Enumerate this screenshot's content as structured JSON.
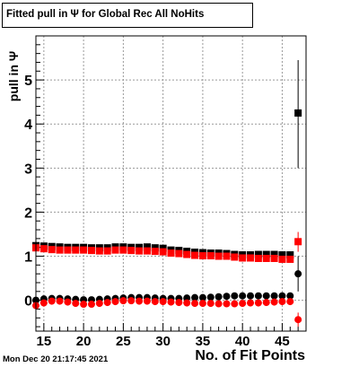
{
  "title": "Fitted pull in  Ψ  for Global Rec All NoHits",
  "timestamp": "Mon Dec 20 21:17:45 2021",
  "chart_data": {
    "type": "scatter",
    "xlabel": "No. of Fit Points",
    "ylabel": "pull in  Ψ",
    "xlim": [
      14,
      48
    ],
    "ylim": [
      -0.7,
      6.0
    ],
    "xticks": [
      15,
      20,
      25,
      30,
      35,
      40,
      45
    ],
    "yticks": [
      0,
      1,
      2,
      3,
      4,
      5
    ],
    "grid": true,
    "series": [
      {
        "marker": "square",
        "color": "#000000",
        "x": [
          14,
          15,
          16,
          17,
          18,
          19,
          20,
          21,
          22,
          23,
          24,
          25,
          26,
          27,
          28,
          29,
          30,
          31,
          32,
          33,
          34,
          35,
          36,
          37,
          38,
          39,
          40,
          41,
          42,
          43,
          44,
          45,
          46
        ],
        "y": [
          1.24,
          1.23,
          1.22,
          1.21,
          1.2,
          1.2,
          1.2,
          1.19,
          1.19,
          1.19,
          1.21,
          1.21,
          1.2,
          1.2,
          1.21,
          1.19,
          1.18,
          1.14,
          1.13,
          1.11,
          1.09,
          1.08,
          1.07,
          1.07,
          1.06,
          1.04,
          1.03,
          1.03,
          1.04,
          1.04,
          1.04,
          1.03,
          1.03
        ]
      },
      {
        "marker": "square",
        "color": "#ff0000",
        "x": [
          14,
          15,
          16,
          17,
          18,
          19,
          20,
          21,
          22,
          23,
          24,
          25,
          26,
          27,
          28,
          29,
          30,
          31,
          32,
          33,
          34,
          35,
          36,
          37,
          38,
          39,
          40,
          41,
          42,
          43,
          44,
          45,
          46
        ],
        "y": [
          1.19,
          1.17,
          1.15,
          1.14,
          1.14,
          1.14,
          1.14,
          1.13,
          1.12,
          1.12,
          1.14,
          1.14,
          1.13,
          1.12,
          1.12,
          1.11,
          1.1,
          1.07,
          1.06,
          1.04,
          1.02,
          1.01,
          1.01,
          1.0,
          1.0,
          0.98,
          0.96,
          0.96,
          0.95,
          0.95,
          0.95,
          0.93,
          0.93
        ]
      },
      {
        "marker": "circle",
        "color": "#000000",
        "x": [
          14,
          15,
          16,
          17,
          18,
          19,
          20,
          21,
          22,
          23,
          24,
          25,
          26,
          27,
          28,
          29,
          30,
          31,
          32,
          33,
          34,
          35,
          36,
          37,
          38,
          39,
          40,
          41,
          42,
          43,
          44,
          45,
          46
        ],
        "y": [
          0.0,
          0.03,
          0.04,
          0.04,
          0.03,
          0.02,
          0.01,
          0.01,
          0.02,
          0.03,
          0.04,
          0.05,
          0.06,
          0.06,
          0.06,
          0.05,
          0.04,
          0.04,
          0.04,
          0.05,
          0.06,
          0.06,
          0.07,
          0.08,
          0.09,
          0.1,
          0.1,
          0.1,
          0.1,
          0.1,
          0.1,
          0.1,
          0.1
        ]
      },
      {
        "marker": "circle",
        "color": "#ff0000",
        "x": [
          14,
          15,
          16,
          17,
          18,
          19,
          20,
          21,
          22,
          23,
          24,
          25,
          26,
          27,
          28,
          29,
          30,
          31,
          32,
          33,
          34,
          35,
          36,
          37,
          38,
          39,
          40,
          41,
          42,
          43,
          44,
          45,
          46
        ],
        "y": [
          -0.12,
          -0.06,
          -0.02,
          -0.02,
          -0.04,
          -0.07,
          -0.09,
          -0.09,
          -0.07,
          -0.05,
          -0.03,
          -0.01,
          -0.01,
          -0.02,
          -0.02,
          -0.03,
          -0.03,
          -0.04,
          -0.05,
          -0.06,
          -0.07,
          -0.07,
          -0.07,
          -0.08,
          -0.08,
          -0.08,
          -0.07,
          -0.06,
          -0.06,
          -0.05,
          -0.04,
          -0.03,
          -0.03
        ]
      }
    ],
    "outliers": [
      {
        "marker": "square",
        "color": "#000000",
        "x": 47,
        "y": 4.25,
        "err_low": 3.0,
        "err_high": 5.45
      },
      {
        "marker": "square",
        "color": "#ff0000",
        "x": 47,
        "y": 1.33,
        "err_low": 1.1,
        "err_high": 1.55
      },
      {
        "marker": "circle",
        "color": "#000000",
        "x": 47,
        "y": 0.6,
        "err_low": 0.2,
        "err_high": 1.0
      },
      {
        "marker": "circle",
        "color": "#ff0000",
        "x": 47,
        "y": -0.44,
        "err_low": -0.6,
        "err_high": -0.28
      }
    ]
  }
}
